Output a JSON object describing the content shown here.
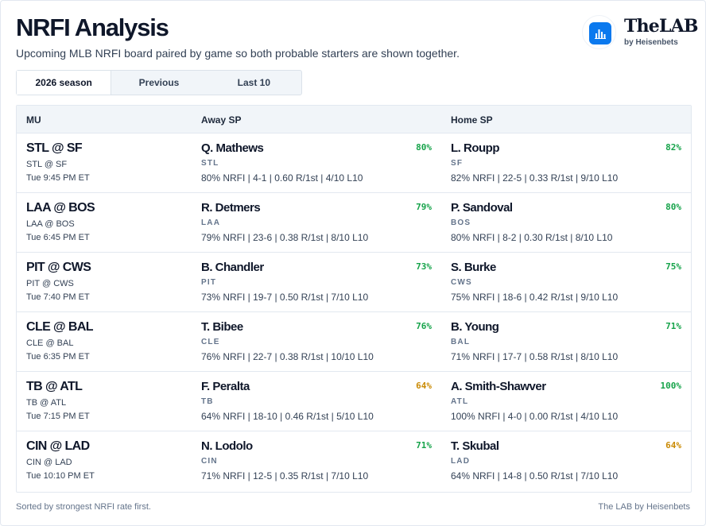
{
  "header": {
    "title": "NRFI Analysis",
    "subtitle": "Upcoming MLB NRFI board paired by game so both probable starters are shown together."
  },
  "brand": {
    "name": "TheLAB",
    "sub": "by Heisenbets",
    "icon": "bar-chart-icon",
    "accent": "#0b79ee"
  },
  "tabs": [
    {
      "label": "2026 season",
      "active": true
    },
    {
      "label": "Previous",
      "active": false
    },
    {
      "label": "Last 10",
      "active": false
    }
  ],
  "columns": {
    "mu": "MU",
    "away": "Away SP",
    "home": "Home SP"
  },
  "colors": {
    "high": "#16a34a",
    "mid": "#ca8a04"
  },
  "rows": [
    {
      "mu": "STL @ SF",
      "mu_sub": "STL @ SF",
      "time": "Tue 9:45 PM ET",
      "away": {
        "name": "Q. Mathews",
        "team": "STL",
        "line": "80% NRFI | 4-1 | 0.60 R/1st | 4/10 L10",
        "pct": "80%",
        "tier": "high"
      },
      "home": {
        "name": "L. Roupp",
        "team": "SF",
        "line": "82% NRFI | 22-5 | 0.33 R/1st | 9/10 L10",
        "pct": "82%",
        "tier": "high"
      }
    },
    {
      "mu": "LAA @ BOS",
      "mu_sub": "LAA @ BOS",
      "time": "Tue 6:45 PM ET",
      "away": {
        "name": "R. Detmers",
        "team": "LAA",
        "line": "79% NRFI | 23-6 | 0.38 R/1st | 8/10 L10",
        "pct": "79%",
        "tier": "high"
      },
      "home": {
        "name": "P. Sandoval",
        "team": "BOS",
        "line": "80% NRFI | 8-2 | 0.30 R/1st | 8/10 L10",
        "pct": "80%",
        "tier": "high"
      }
    },
    {
      "mu": "PIT @ CWS",
      "mu_sub": "PIT @ CWS",
      "time": "Tue 7:40 PM ET",
      "away": {
        "name": "B. Chandler",
        "team": "PIT",
        "line": "73% NRFI | 19-7 | 0.50 R/1st | 7/10 L10",
        "pct": "73%",
        "tier": "high"
      },
      "home": {
        "name": "S. Burke",
        "team": "CWS",
        "line": "75% NRFI | 18-6 | 0.42 R/1st | 9/10 L10",
        "pct": "75%",
        "tier": "high"
      }
    },
    {
      "mu": "CLE @ BAL",
      "mu_sub": "CLE @ BAL",
      "time": "Tue 6:35 PM ET",
      "away": {
        "name": "T. Bibee",
        "team": "CLE",
        "line": "76% NRFI | 22-7 | 0.38 R/1st | 10/10 L10",
        "pct": "76%",
        "tier": "high"
      },
      "home": {
        "name": "B. Young",
        "team": "BAL",
        "line": "71% NRFI | 17-7 | 0.58 R/1st | 8/10 L10",
        "pct": "71%",
        "tier": "high"
      }
    },
    {
      "mu": "TB @ ATL",
      "mu_sub": "TB @ ATL",
      "time": "Tue 7:15 PM ET",
      "away": {
        "name": "F. Peralta",
        "team": "TB",
        "line": "64% NRFI | 18-10 | 0.46 R/1st | 5/10 L10",
        "pct": "64%",
        "tier": "mid"
      },
      "home": {
        "name": "A. Smith-Shawver",
        "team": "ATL",
        "line": "100% NRFI | 4-0 | 0.00 R/1st | 4/10 L10",
        "pct": "100%",
        "tier": "high"
      }
    },
    {
      "mu": "CIN @ LAD",
      "mu_sub": "CIN @ LAD",
      "time": "Tue 10:10 PM ET",
      "away": {
        "name": "N. Lodolo",
        "team": "CIN",
        "line": "71% NRFI | 12-5 | 0.35 R/1st | 7/10 L10",
        "pct": "71%",
        "tier": "high"
      },
      "home": {
        "name": "T. Skubal",
        "team": "LAD",
        "line": "64% NRFI | 14-8 | 0.50 R/1st | 7/10 L10",
        "pct": "64%",
        "tier": "mid"
      }
    }
  ],
  "footer": {
    "note": "Sorted by strongest NRFI rate first.",
    "credit": "The LAB by Heisenbets"
  }
}
